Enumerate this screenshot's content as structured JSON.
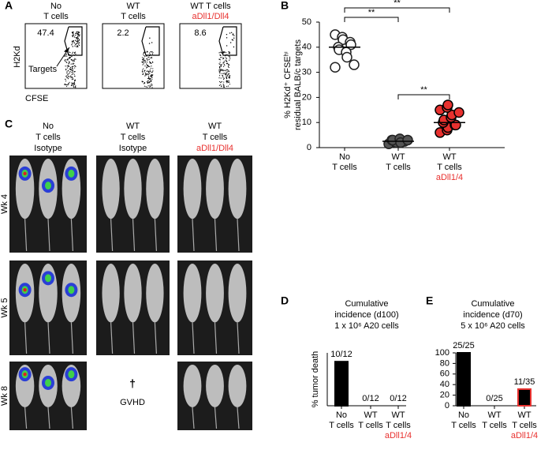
{
  "panel_a": {
    "label": "A",
    "plots": [
      {
        "header": [
          "No",
          "T cells"
        ],
        "value": 47.4
      },
      {
        "header": [
          "WT",
          "T cells"
        ],
        "value": 2.2
      },
      {
        "header": [
          "WT T cells",
          "aDll1/Dll4"
        ],
        "value": 8.6
      }
    ],
    "y_label": "H2Kd",
    "x_label": "CFSE",
    "annotation": "Targets"
  },
  "panel_c": {
    "label": "C",
    "columns": [
      [
        "No",
        "T cells",
        "Isotype"
      ],
      [
        "WT",
        "T cells",
        "Isotype"
      ],
      [
        "WT",
        "T cells",
        "aDll1/Dll4"
      ]
    ],
    "rows": [
      "Wk 4",
      "Wk 5",
      "Wk 8"
    ],
    "dagger": "†",
    "death_label": "GVHD"
  },
  "chart_data": [
    {
      "type": "dot",
      "label": "B",
      "y_label": [
        "% H2Kd⁺ CFSEʰⁱ",
        "residual BALB/c targets"
      ],
      "categories": [
        [
          "No",
          "T cells"
        ],
        [
          "WT",
          "T cells"
        ],
        [
          "WT",
          "T cells",
          "aDll1/4"
        ]
      ],
      "values": [
        [
          45,
          44,
          43,
          42,
          41,
          40,
          39,
          38,
          36,
          33,
          32
        ],
        [
          1.5,
          2,
          2,
          2.5,
          2.5,
          3,
          3,
          3.5,
          2,
          3
        ],
        [
          6,
          7,
          8,
          9,
          9,
          10,
          11,
          12,
          13,
          14,
          15,
          16,
          17
        ]
      ],
      "means": [
        40,
        2.5,
        10
      ],
      "colors": [
        "#ffffff",
        "#555555",
        "#e8312f"
      ],
      "significance": [
        "**",
        "**",
        "**"
      ],
      "ylim": [
        0,
        50
      ],
      "yticks": [
        0,
        10,
        20,
        30,
        40,
        50
      ]
    },
    {
      "type": "bar",
      "label": "D",
      "title": [
        "Cumulative",
        "incidence (d100)",
        "1 x 10⁶ A20 cells"
      ],
      "y_label": "% tumor death",
      "categories": [
        [
          "No",
          "T cells"
        ],
        [
          "WT",
          "T cells"
        ],
        [
          "WT",
          "T cells",
          "aDll1/4"
        ]
      ],
      "values": [
        83.3,
        0,
        0
      ],
      "value_labels": [
        "10/12",
        "0/12",
        "0/12"
      ],
      "ylim": [
        0,
        100
      ]
    },
    {
      "type": "bar",
      "label": "E",
      "title": [
        "Cumulative",
        "incidence (d70)",
        "5 x 10⁶ A20 cells"
      ],
      "categories": [
        [
          "No",
          "T cells"
        ],
        [
          "WT",
          "T cells"
        ],
        [
          "WT",
          "T cells",
          "aDll1/4"
        ]
      ],
      "values": [
        100,
        0,
        31.4
      ],
      "value_labels": [
        "25/25",
        "0/25",
        "11/35"
      ],
      "ylim": [
        0,
        100
      ],
      "yticks": [
        0,
        20,
        40,
        60,
        80,
        100
      ]
    }
  ]
}
